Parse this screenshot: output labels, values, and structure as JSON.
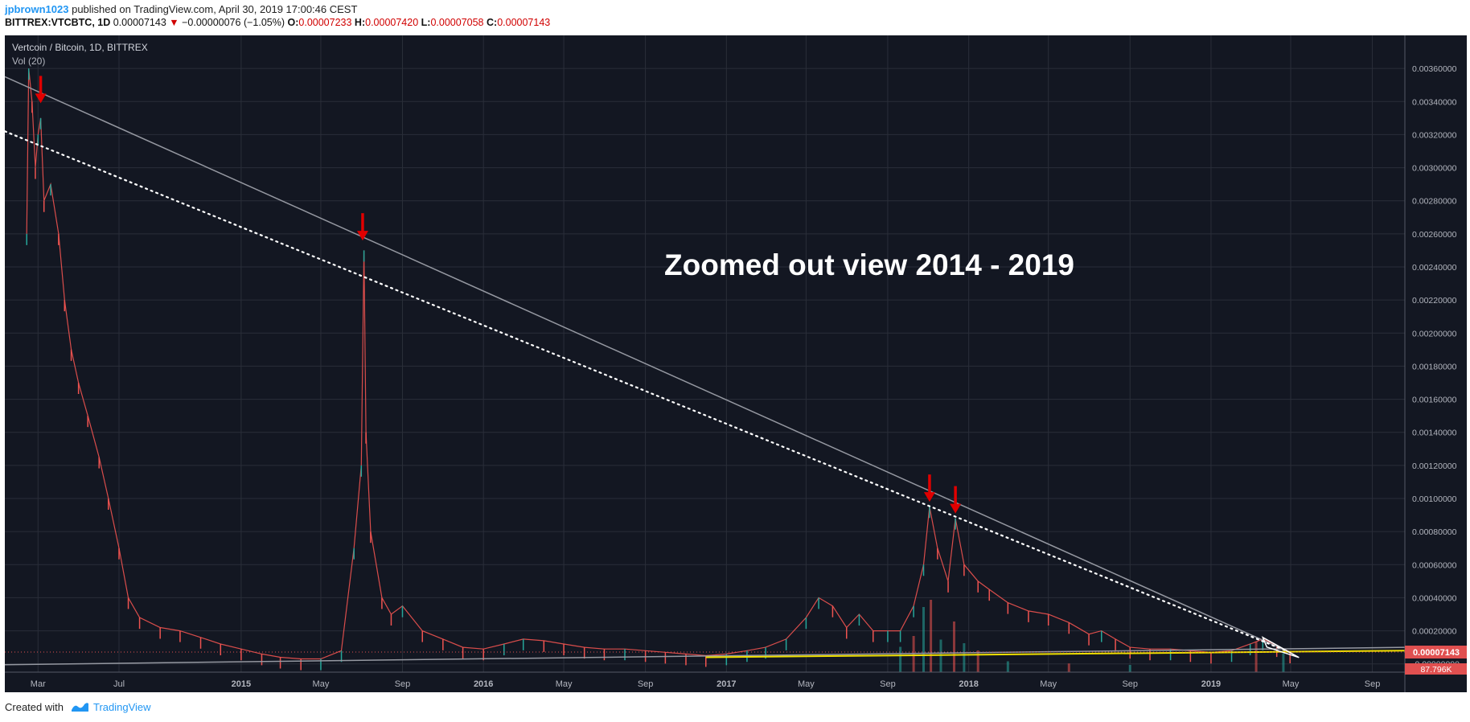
{
  "header": {
    "author": "jpbrown1023",
    "published_text": "published on TradingView.com, April 30, 2019 17:00:46 CEST",
    "symbol_line": "BITTREX:VTCBTC, 1D",
    "last": "0.00007143",
    "change_arrow": "▼",
    "change": "−0.00000076 (−1.05%)",
    "o_label": "O:",
    "o_value": "0.00007233",
    "h_label": "H:",
    "h_value": "0.00007420",
    "l_label": "L:",
    "l_value": "0.00007058",
    "c_label": "C:",
    "c_value": "0.00007143"
  },
  "chart": {
    "pane_title": "Vertcoin / Bitcoin, 1D, BITTREX",
    "indicator": "Vol (20)",
    "annotation": "Zoomed out view 2014 - 2019",
    "last_price_label": "0.00007143",
    "volume_label": "87.796K"
  },
  "footer": {
    "created_with": "Created with",
    "brand": "TradingView"
  },
  "colors": {
    "background": "#131722",
    "grid": "#2a2e39",
    "up": "#26a69a",
    "down": "#ef5350",
    "arrow": "#e00000",
    "trendline_yellow": "#f0e000",
    "last_price": "#e05050"
  },
  "chart_data": {
    "type": "line",
    "title": "Vertcoin / Bitcoin, 1D, BITTREX",
    "xlabel": "",
    "ylabel": "",
    "grid": true,
    "y_axis_side": "right",
    "ylim": [
      -5e-05,
      0.0038
    ],
    "y_ticks": [
      "0.00360000",
      "0.00340000",
      "0.00320000",
      "0.00300000",
      "0.00280000",
      "0.00260000",
      "0.00240000",
      "0.00220000",
      "0.00200000",
      "0.00180000",
      "0.00160000",
      "0.00140000",
      "0.00120000",
      "0.00100000",
      "0.00080000",
      "0.00060000",
      "0.00040000",
      "0.00020000",
      "0.00007143",
      "-0.00000000"
    ],
    "x_ticks": [
      "Mar",
      "Jul",
      "2015",
      "May",
      "Sep",
      "2016",
      "May",
      "Sep",
      "2017",
      "May",
      "Sep",
      "2018",
      "May",
      "Sep",
      "2019",
      "May",
      "Sep"
    ],
    "x_tick_dates": [
      "2014-03-01",
      "2014-07-01",
      "2015-01-01",
      "2015-05-01",
      "2015-09-01",
      "2016-01-01",
      "2016-05-01",
      "2016-09-01",
      "2017-01-01",
      "2017-05-01",
      "2017-09-01",
      "2018-01-01",
      "2018-05-01",
      "2018-09-01",
      "2019-01-01",
      "2019-05-01",
      "2019-09-01"
    ],
    "xlim": [
      "2014-01-10",
      "2019-10-20"
    ],
    "series": [
      {
        "points": [
          [
            "2014-02-12",
            0.0026
          ],
          [
            "2014-02-15",
            0.0036
          ],
          [
            "2014-02-20",
            0.0034
          ],
          [
            "2014-02-25",
            0.003
          ],
          [
            "2014-03-01",
            0.0032
          ],
          [
            "2014-03-05",
            0.0033
          ],
          [
            "2014-03-10",
            0.0028
          ],
          [
            "2014-03-20",
            0.0029
          ],
          [
            "2014-04-01",
            0.0026
          ],
          [
            "2014-04-10",
            0.0022
          ],
          [
            "2014-04-20",
            0.0019
          ],
          [
            "2014-05-01",
            0.0017
          ],
          [
            "2014-05-15",
            0.0015
          ],
          [
            "2014-06-01",
            0.00125
          ],
          [
            "2014-06-15",
            0.001
          ],
          [
            "2014-07-01",
            0.0007
          ],
          [
            "2014-07-15",
            0.0004
          ],
          [
            "2014-08-01",
            0.00028
          ],
          [
            "2014-09-01",
            0.00022
          ],
          [
            "2014-10-01",
            0.0002
          ],
          [
            "2014-11-01",
            0.00016
          ],
          [
            "2014-12-01",
            0.00012
          ],
          [
            "2015-01-01",
            9e-05
          ],
          [
            "2015-02-01",
            6e-05
          ],
          [
            "2015-03-01",
            4e-05
          ],
          [
            "2015-04-01",
            3e-05
          ],
          [
            "2015-05-01",
            3e-05
          ],
          [
            "2015-06-01",
            8e-05
          ],
          [
            "2015-06-20",
            0.0007
          ],
          [
            "2015-07-01",
            0.0012
          ],
          [
            "2015-07-05",
            0.0025
          ],
          [
            "2015-07-08",
            0.0014
          ],
          [
            "2015-07-15",
            0.0008
          ],
          [
            "2015-08-01",
            0.0004
          ],
          [
            "2015-08-15",
            0.0003
          ],
          [
            "2015-09-01",
            0.00035
          ],
          [
            "2015-10-01",
            0.0002
          ],
          [
            "2015-11-01",
            0.00015
          ],
          [
            "2015-12-01",
            0.0001
          ],
          [
            "2016-01-01",
            9e-05
          ],
          [
            "2016-02-01",
            0.00012
          ],
          [
            "2016-03-01",
            0.00015
          ],
          [
            "2016-04-01",
            0.00014
          ],
          [
            "2016-05-01",
            0.00012
          ],
          [
            "2016-06-01",
            0.0001
          ],
          [
            "2016-07-01",
            9e-05
          ],
          [
            "2016-08-01",
            9e-05
          ],
          [
            "2016-09-01",
            8e-05
          ],
          [
            "2016-10-01",
            7e-05
          ],
          [
            "2016-11-01",
            6e-05
          ],
          [
            "2016-12-01",
            5e-05
          ],
          [
            "2017-01-01",
            6e-05
          ],
          [
            "2017-02-01",
            8e-05
          ],
          [
            "2017-03-01",
            0.0001
          ],
          [
            "2017-04-01",
            0.00015
          ],
          [
            "2017-05-01",
            0.00028
          ],
          [
            "2017-05-20",
            0.0004
          ],
          [
            "2017-06-10",
            0.00035
          ],
          [
            "2017-07-01",
            0.00022
          ],
          [
            "2017-07-20",
            0.0003
          ],
          [
            "2017-08-10",
            0.0002
          ],
          [
            "2017-09-01",
            0.0002
          ],
          [
            "2017-09-20",
            0.0002
          ],
          [
            "2017-10-10",
            0.00035
          ],
          [
            "2017-10-25",
            0.0006
          ],
          [
            "2017-11-03",
            0.00095
          ],
          [
            "2017-11-15",
            0.0007
          ],
          [
            "2017-12-01",
            0.0005
          ],
          [
            "2017-12-12",
            0.00088
          ],
          [
            "2017-12-25",
            0.0006
          ],
          [
            "2018-01-15",
            0.0005
          ],
          [
            "2018-02-01",
            0.00045
          ],
          [
            "2018-03-01",
            0.00037
          ],
          [
            "2018-04-01",
            0.00032
          ],
          [
            "2018-05-01",
            0.0003
          ],
          [
            "2018-06-01",
            0.00025
          ],
          [
            "2018-07-01",
            0.00018
          ],
          [
            "2018-07-20",
            0.0002
          ],
          [
            "2018-08-10",
            0.00015
          ],
          [
            "2018-09-01",
            0.0001
          ],
          [
            "2018-10-01",
            9e-05
          ],
          [
            "2018-11-01",
            9e-05
          ],
          [
            "2018-12-01",
            8e-05
          ],
          [
            "2019-01-01",
            7e-05
          ],
          [
            "2019-02-01",
            8e-05
          ],
          [
            "2019-03-01",
            0.00012
          ],
          [
            "2019-03-20",
            0.00015
          ],
          [
            "2019-04-10",
            0.00011
          ],
          [
            "2019-04-30",
            7.143e-05
          ]
        ]
      }
    ],
    "volume_series": {
      "points": [
        [
          "2017-09-20",
          350
        ],
        [
          "2017-10-10",
          500
        ],
        [
          "2017-10-25",
          900
        ],
        [
          "2017-11-05",
          1000
        ],
        [
          "2017-11-20",
          450
        ],
        [
          "2017-12-10",
          700
        ],
        [
          "2017-12-25",
          400
        ],
        [
          "2018-01-15",
          300
        ],
        [
          "2018-03-01",
          150
        ],
        [
          "2018-06-01",
          120
        ],
        [
          "2018-09-01",
          100
        ],
        [
          "2019-03-10",
          420
        ],
        [
          "2019-04-20",
          260
        ]
      ]
    },
    "trendlines": [
      {
        "style": "solid",
        "color": "gray",
        "from": [
          "2014-01-10",
          0.00355
        ],
        "to": [
          "2019-04-30",
          7e-05
        ]
      },
      {
        "style": "dotted",
        "color": "white",
        "from": [
          "2014-01-10",
          0.00322
        ],
        "to": [
          "2019-04-30",
          7e-05
        ]
      },
      {
        "style": "solid",
        "color": "gray",
        "from": [
          "2014-01-10",
          -5e-06
        ],
        "to": [
          "2019-10-20",
          0.0001
        ]
      },
      {
        "style": "solid",
        "color": "yellow",
        "from": [
          "2016-12-01",
          4e-05
        ],
        "to": [
          "2019-10-20",
          8e-05
        ]
      }
    ],
    "arrows": [
      {
        "date": "2014-03-05",
        "value": 0.00338
      },
      {
        "date": "2015-07-03",
        "value": 0.00255
      },
      {
        "date": "2017-11-03",
        "value": 0.00097
      },
      {
        "date": "2017-12-12",
        "value": 0.0009
      }
    ],
    "last_price": 7.143e-05
  }
}
